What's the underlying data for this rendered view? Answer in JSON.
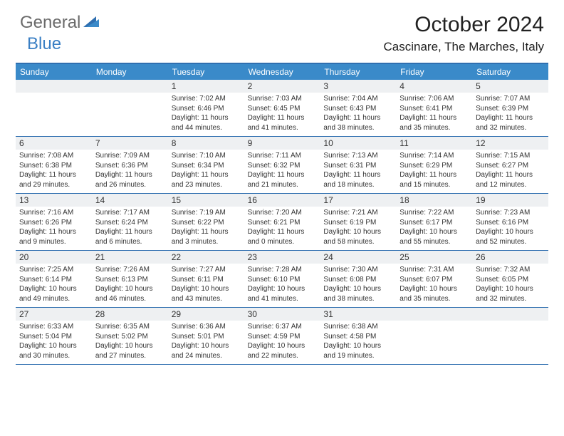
{
  "logo": {
    "text1": "General",
    "text2": "Blue",
    "color1": "#6a6a6a",
    "color2": "#3a7fc4"
  },
  "title": "October 2024",
  "location": "Cascinare, The Marches, Italy",
  "colors": {
    "header_bg": "#3a8ac9",
    "header_text": "#ffffff",
    "border": "#2f6fb0",
    "daynum_bg": "#eef0f2",
    "text": "#333333"
  },
  "weekdays": [
    "Sunday",
    "Monday",
    "Tuesday",
    "Wednesday",
    "Thursday",
    "Friday",
    "Saturday"
  ],
  "weeks": [
    [
      null,
      null,
      {
        "n": "1",
        "sr": "7:02 AM",
        "ss": "6:46 PM",
        "dl": "11 hours and 44 minutes."
      },
      {
        "n": "2",
        "sr": "7:03 AM",
        "ss": "6:45 PM",
        "dl": "11 hours and 41 minutes."
      },
      {
        "n": "3",
        "sr": "7:04 AM",
        "ss": "6:43 PM",
        "dl": "11 hours and 38 minutes."
      },
      {
        "n": "4",
        "sr": "7:06 AM",
        "ss": "6:41 PM",
        "dl": "11 hours and 35 minutes."
      },
      {
        "n": "5",
        "sr": "7:07 AM",
        "ss": "6:39 PM",
        "dl": "11 hours and 32 minutes."
      }
    ],
    [
      {
        "n": "6",
        "sr": "7:08 AM",
        "ss": "6:38 PM",
        "dl": "11 hours and 29 minutes."
      },
      {
        "n": "7",
        "sr": "7:09 AM",
        "ss": "6:36 PM",
        "dl": "11 hours and 26 minutes."
      },
      {
        "n": "8",
        "sr": "7:10 AM",
        "ss": "6:34 PM",
        "dl": "11 hours and 23 minutes."
      },
      {
        "n": "9",
        "sr": "7:11 AM",
        "ss": "6:32 PM",
        "dl": "11 hours and 21 minutes."
      },
      {
        "n": "10",
        "sr": "7:13 AM",
        "ss": "6:31 PM",
        "dl": "11 hours and 18 minutes."
      },
      {
        "n": "11",
        "sr": "7:14 AM",
        "ss": "6:29 PM",
        "dl": "11 hours and 15 minutes."
      },
      {
        "n": "12",
        "sr": "7:15 AM",
        "ss": "6:27 PM",
        "dl": "11 hours and 12 minutes."
      }
    ],
    [
      {
        "n": "13",
        "sr": "7:16 AM",
        "ss": "6:26 PM",
        "dl": "11 hours and 9 minutes."
      },
      {
        "n": "14",
        "sr": "7:17 AM",
        "ss": "6:24 PM",
        "dl": "11 hours and 6 minutes."
      },
      {
        "n": "15",
        "sr": "7:19 AM",
        "ss": "6:22 PM",
        "dl": "11 hours and 3 minutes."
      },
      {
        "n": "16",
        "sr": "7:20 AM",
        "ss": "6:21 PM",
        "dl": "11 hours and 0 minutes."
      },
      {
        "n": "17",
        "sr": "7:21 AM",
        "ss": "6:19 PM",
        "dl": "10 hours and 58 minutes."
      },
      {
        "n": "18",
        "sr": "7:22 AM",
        "ss": "6:17 PM",
        "dl": "10 hours and 55 minutes."
      },
      {
        "n": "19",
        "sr": "7:23 AM",
        "ss": "6:16 PM",
        "dl": "10 hours and 52 minutes."
      }
    ],
    [
      {
        "n": "20",
        "sr": "7:25 AM",
        "ss": "6:14 PM",
        "dl": "10 hours and 49 minutes."
      },
      {
        "n": "21",
        "sr": "7:26 AM",
        "ss": "6:13 PM",
        "dl": "10 hours and 46 minutes."
      },
      {
        "n": "22",
        "sr": "7:27 AM",
        "ss": "6:11 PM",
        "dl": "10 hours and 43 minutes."
      },
      {
        "n": "23",
        "sr": "7:28 AM",
        "ss": "6:10 PM",
        "dl": "10 hours and 41 minutes."
      },
      {
        "n": "24",
        "sr": "7:30 AM",
        "ss": "6:08 PM",
        "dl": "10 hours and 38 minutes."
      },
      {
        "n": "25",
        "sr": "7:31 AM",
        "ss": "6:07 PM",
        "dl": "10 hours and 35 minutes."
      },
      {
        "n": "26",
        "sr": "7:32 AM",
        "ss": "6:05 PM",
        "dl": "10 hours and 32 minutes."
      }
    ],
    [
      {
        "n": "27",
        "sr": "6:33 AM",
        "ss": "5:04 PM",
        "dl": "10 hours and 30 minutes."
      },
      {
        "n": "28",
        "sr": "6:35 AM",
        "ss": "5:02 PM",
        "dl": "10 hours and 27 minutes."
      },
      {
        "n": "29",
        "sr": "6:36 AM",
        "ss": "5:01 PM",
        "dl": "10 hours and 24 minutes."
      },
      {
        "n": "30",
        "sr": "6:37 AM",
        "ss": "4:59 PM",
        "dl": "10 hours and 22 minutes."
      },
      {
        "n": "31",
        "sr": "6:38 AM",
        "ss": "4:58 PM",
        "dl": "10 hours and 19 minutes."
      },
      null,
      null
    ]
  ],
  "labels": {
    "sunrise": "Sunrise:",
    "sunset": "Sunset:",
    "daylight": "Daylight:"
  }
}
